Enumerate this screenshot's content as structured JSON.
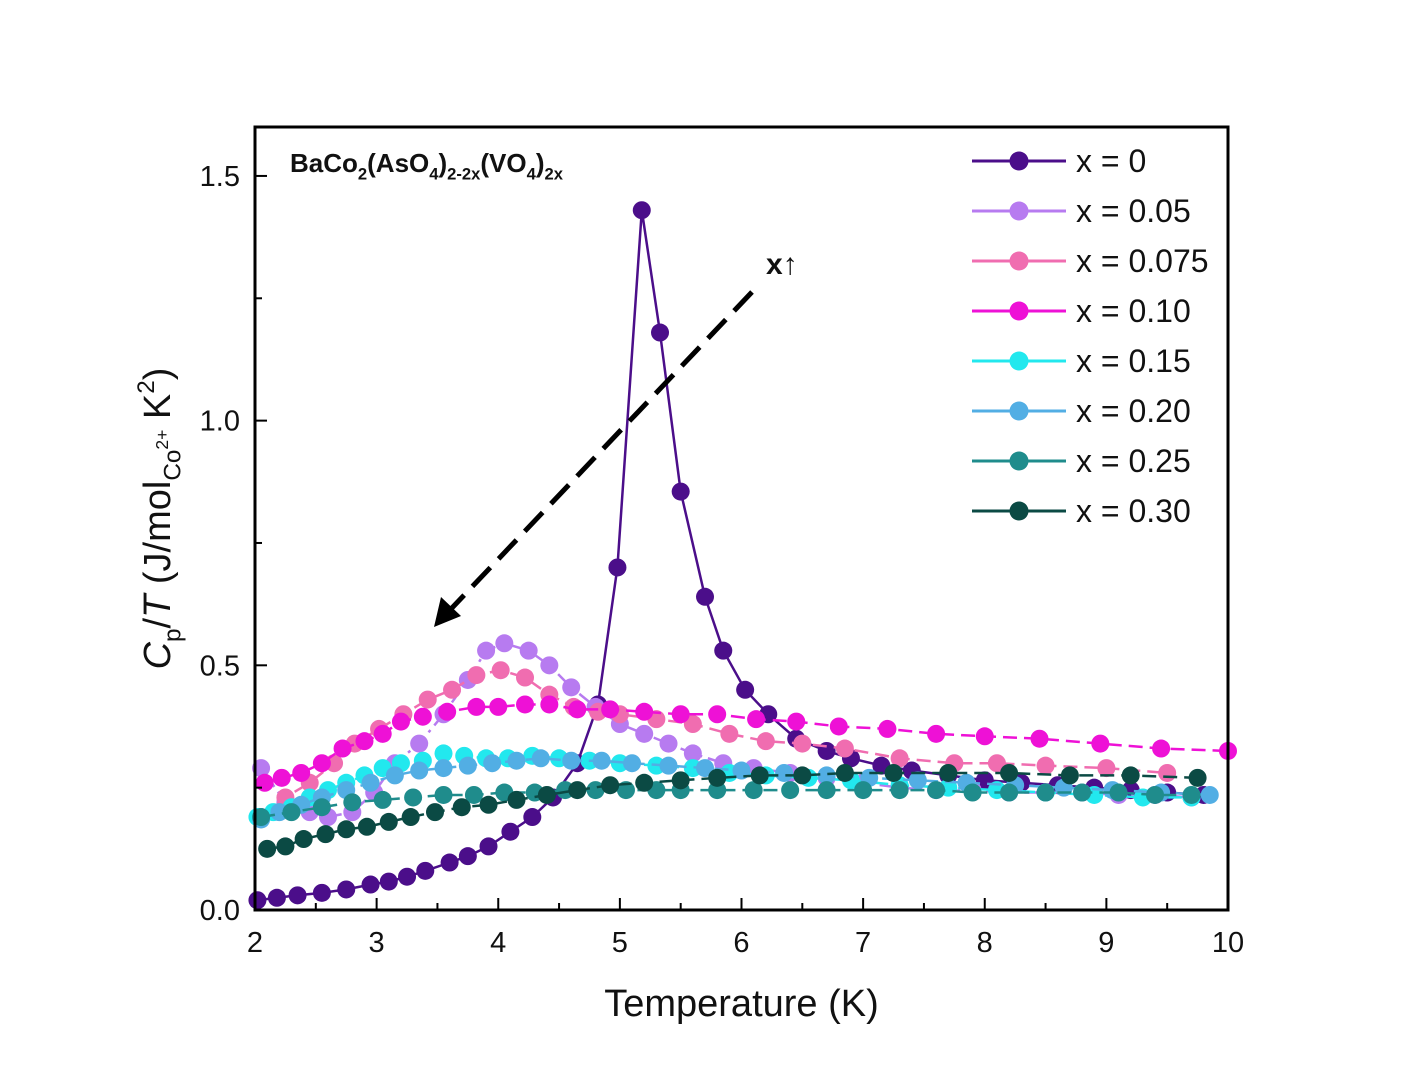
{
  "chart_data": {
    "type": "line",
    "title": "",
    "annotation": {
      "formula": {
        "parts": [
          {
            "t": "BaCo",
            "s": "n"
          },
          {
            "t": "2",
            "s": "sub"
          },
          {
            "t": "(AsO",
            "s": "n"
          },
          {
            "t": "4",
            "s": "sub"
          },
          {
            "t": ")",
            "s": "n"
          },
          {
            "t": "2-2x",
            "s": "sub"
          },
          {
            "t": "(VO",
            "s": "n"
          },
          {
            "t": "4",
            "s": "sub"
          },
          {
            "t": ")",
            "s": "n"
          },
          {
            "t": "2x",
            "s": "sub"
          }
        ]
      },
      "trend_label": "x↑",
      "trend_direction": "increasing x lowers and broadens the peak"
    },
    "xlabel": "Temperature (K)",
    "ylabel": {
      "parts": [
        {
          "t": "C",
          "s": "n",
          "italic": true
        },
        {
          "t": "p",
          "s": "sub"
        },
        {
          "t": "/",
          "s": "n"
        },
        {
          "t": "T",
          "s": "n",
          "italic": true
        },
        {
          "t": " (J/mol",
          "s": "n"
        },
        {
          "t": "Co",
          "s": "sub"
        },
        {
          "t": "2+",
          "s": "subsup"
        },
        {
          "t": " K",
          "s": "n"
        },
        {
          "t": "2",
          "s": "sup"
        },
        {
          "t": ")",
          "s": "n"
        }
      ]
    },
    "xlim": [
      2,
      10
    ],
    "ylim": [
      0,
      1.6
    ],
    "xticks": [
      2,
      3,
      4,
      5,
      6,
      7,
      8,
      9,
      10
    ],
    "yticks": [
      0.0,
      0.5,
      1.0,
      1.5
    ],
    "yticklabels": [
      "0.0",
      "0.5",
      "1.0",
      "1.5"
    ],
    "legend_position": "top-right",
    "series": [
      {
        "name": "x = 0",
        "color": "#4b0e8a",
        "line_style": "solid",
        "x": [
          2.02,
          2.18,
          2.35,
          2.55,
          2.75,
          2.95,
          3.1,
          3.25,
          3.4,
          3.6,
          3.75,
          3.92,
          4.1,
          4.28,
          4.45,
          4.65,
          4.82,
          4.98,
          5.18,
          5.33,
          5.5,
          5.7,
          5.85,
          6.03,
          6.22,
          6.45,
          6.7,
          6.9,
          7.15,
          7.4,
          7.7,
          8.0,
          8.3,
          8.6,
          8.9,
          9.2,
          9.5,
          9.8
        ],
        "y": [
          0.02,
          0.025,
          0.03,
          0.035,
          0.042,
          0.052,
          0.058,
          0.068,
          0.08,
          0.097,
          0.11,
          0.13,
          0.16,
          0.19,
          0.23,
          0.3,
          0.42,
          0.7,
          1.43,
          1.18,
          0.855,
          0.64,
          0.53,
          0.45,
          0.4,
          0.35,
          0.325,
          0.31,
          0.295,
          0.285,
          0.275,
          0.265,
          0.26,
          0.255,
          0.25,
          0.245,
          0.24,
          0.235
        ]
      },
      {
        "name": "x = 0.05",
        "color": "#b77bf0",
        "line_style": "dash-dot",
        "x": [
          2.05,
          2.25,
          2.45,
          2.6,
          2.8,
          2.98,
          3.15,
          3.35,
          3.55,
          3.75,
          3.9,
          4.05,
          4.25,
          4.42,
          4.6,
          4.8,
          5.0,
          5.2,
          5.4,
          5.6,
          5.85,
          6.1,
          6.4,
          6.7,
          7.0,
          7.3,
          7.6,
          7.9,
          8.2,
          8.5,
          8.8,
          9.1,
          9.4,
          9.7
        ],
        "y": [
          0.29,
          0.22,
          0.2,
          0.19,
          0.2,
          0.24,
          0.3,
          0.34,
          0.4,
          0.47,
          0.53,
          0.545,
          0.53,
          0.5,
          0.455,
          0.415,
          0.38,
          0.36,
          0.34,
          0.32,
          0.3,
          0.29,
          0.28,
          0.27,
          0.26,
          0.25,
          0.245,
          0.245,
          0.24,
          0.24,
          0.24,
          0.235,
          0.235,
          0.23
        ]
      },
      {
        "name": "x = 0.075",
        "color": "#f06db0",
        "line_style": "dashed",
        "x": [
          2.05,
          2.25,
          2.45,
          2.65,
          2.82,
          3.02,
          3.22,
          3.42,
          3.62,
          3.82,
          4.02,
          4.22,
          4.42,
          4.62,
          4.82,
          5.0,
          5.3,
          5.6,
          5.9,
          6.2,
          6.5,
          6.85,
          7.3,
          7.75,
          8.1,
          8.5,
          9.0,
          9.5
        ],
        "y": [
          0.19,
          0.23,
          0.26,
          0.3,
          0.34,
          0.37,
          0.4,
          0.43,
          0.45,
          0.48,
          0.49,
          0.475,
          0.44,
          0.415,
          0.405,
          0.4,
          0.39,
          0.38,
          0.36,
          0.345,
          0.34,
          0.33,
          0.31,
          0.3,
          0.3,
          0.295,
          0.29,
          0.28
        ]
      },
      {
        "name": "x = 0.10",
        "color": "#ee11d6",
        "line_style": "dashed",
        "x": [
          2.08,
          2.22,
          2.38,
          2.55,
          2.72,
          2.9,
          3.05,
          3.2,
          3.38,
          3.58,
          3.82,
          4.0,
          4.22,
          4.42,
          4.65,
          4.92,
          5.2,
          5.5,
          5.8,
          6.12,
          6.45,
          6.8,
          7.2,
          7.6,
          8.0,
          8.45,
          8.95,
          9.45,
          10.0
        ],
        "y": [
          0.26,
          0.27,
          0.28,
          0.3,
          0.33,
          0.345,
          0.36,
          0.385,
          0.395,
          0.405,
          0.415,
          0.415,
          0.42,
          0.42,
          0.41,
          0.41,
          0.405,
          0.4,
          0.4,
          0.39,
          0.385,
          0.375,
          0.37,
          0.36,
          0.355,
          0.35,
          0.34,
          0.33,
          0.325
        ]
      },
      {
        "name": "x = 0.15",
        "color": "#22e8ee",
        "line_style": "dashed",
        "x": [
          2.02,
          2.15,
          2.3,
          2.45,
          2.6,
          2.75,
          2.9,
          3.05,
          3.2,
          3.38,
          3.55,
          3.72,
          3.9,
          4.08,
          4.28,
          4.5,
          4.75,
          5.0,
          5.3,
          5.6,
          5.9,
          6.2,
          6.55,
          6.9,
          7.3,
          7.7,
          8.1,
          8.5,
          8.9,
          9.3,
          9.7
        ],
        "y": [
          0.19,
          0.2,
          0.21,
          0.23,
          0.245,
          0.26,
          0.275,
          0.29,
          0.3,
          0.305,
          0.32,
          0.315,
          0.31,
          0.31,
          0.315,
          0.31,
          0.305,
          0.3,
          0.295,
          0.29,
          0.28,
          0.275,
          0.27,
          0.265,
          0.255,
          0.25,
          0.245,
          0.24,
          0.235,
          0.23,
          0.23
        ]
      },
      {
        "name": "x = 0.20",
        "color": "#52aee4",
        "line_style": "dashed",
        "x": [
          2.05,
          2.2,
          2.38,
          2.55,
          2.75,
          2.95,
          3.15,
          3.35,
          3.55,
          3.75,
          3.95,
          4.15,
          4.35,
          4.6,
          4.85,
          5.1,
          5.4,
          5.7,
          6.0,
          6.35,
          6.7,
          7.05,
          7.45,
          7.85,
          8.25,
          8.65,
          9.05,
          9.45,
          9.85
        ],
        "y": [
          0.185,
          0.2,
          0.215,
          0.23,
          0.245,
          0.26,
          0.275,
          0.285,
          0.29,
          0.295,
          0.3,
          0.305,
          0.31,
          0.305,
          0.305,
          0.3,
          0.295,
          0.29,
          0.285,
          0.28,
          0.275,
          0.27,
          0.265,
          0.26,
          0.255,
          0.25,
          0.245,
          0.24,
          0.235
        ]
      },
      {
        "name": "x = 0.25",
        "color": "#1f8c8c",
        "line_style": "dashed",
        "x": [
          2.05,
          2.3,
          2.55,
          2.8,
          3.05,
          3.3,
          3.55,
          3.8,
          4.05,
          4.3,
          4.55,
          4.8,
          5.05,
          5.3,
          5.5,
          5.8,
          6.1,
          6.4,
          6.7,
          7.0,
          7.3,
          7.6,
          7.9,
          8.2,
          8.5,
          8.8,
          9.1,
          9.4,
          9.7
        ],
        "y": [
          0.19,
          0.2,
          0.21,
          0.22,
          0.225,
          0.23,
          0.235,
          0.235,
          0.24,
          0.24,
          0.245,
          0.245,
          0.245,
          0.245,
          0.245,
          0.245,
          0.245,
          0.245,
          0.245,
          0.245,
          0.245,
          0.245,
          0.24,
          0.24,
          0.24,
          0.24,
          0.24,
          0.235,
          0.235
        ]
      },
      {
        "name": "x = 0.30",
        "color": "#0b4a44",
        "line_style": "dashed",
        "x": [
          2.1,
          2.25,
          2.4,
          2.58,
          2.75,
          2.92,
          3.1,
          3.28,
          3.48,
          3.7,
          3.92,
          4.15,
          4.4,
          4.65,
          4.92,
          5.2,
          5.5,
          5.8,
          6.15,
          6.5,
          6.85,
          7.25,
          7.7,
          8.2,
          8.7,
          9.2,
          9.75
        ],
        "y": [
          0.125,
          0.13,
          0.145,
          0.155,
          0.165,
          0.17,
          0.18,
          0.19,
          0.2,
          0.21,
          0.215,
          0.225,
          0.235,
          0.245,
          0.255,
          0.26,
          0.265,
          0.27,
          0.275,
          0.275,
          0.28,
          0.28,
          0.28,
          0.28,
          0.275,
          0.275,
          0.27
        ]
      }
    ]
  }
}
